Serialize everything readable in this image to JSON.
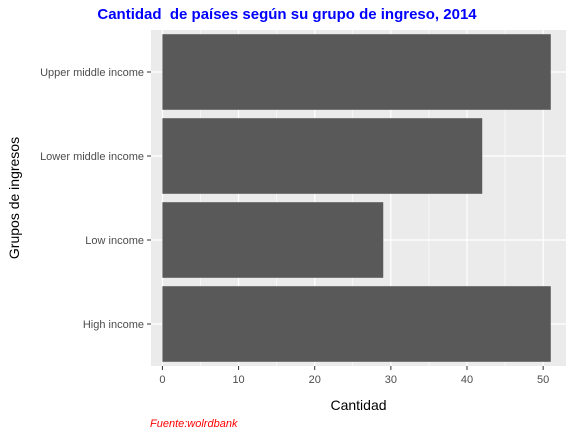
{
  "chart_data": {
    "type": "bar",
    "orientation": "horizontal",
    "title": "Cantidad  de países según su grupo de ingreso, 2014",
    "xlabel": "Cantidad",
    "ylabel": "Grupos de ingresos",
    "categories": [
      "Upper middle income",
      "Lower middle income",
      "Low income",
      "High income"
    ],
    "values": [
      51,
      42,
      29,
      51
    ],
    "xlim": [
      -1.5,
      53
    ],
    "xticks": [
      "0",
      "10",
      "20",
      "30",
      "40",
      "50"
    ],
    "grid": true,
    "legend": "none",
    "caption": "Fuente:wolrdbank",
    "colors": {
      "bar": "#595959",
      "panel": "#ebebeb",
      "grid": "#ffffff",
      "title": "#0000ff",
      "caption": "#ff0000",
      "tick_text": "#4d4d4d",
      "axis_text": "#000000"
    }
  }
}
